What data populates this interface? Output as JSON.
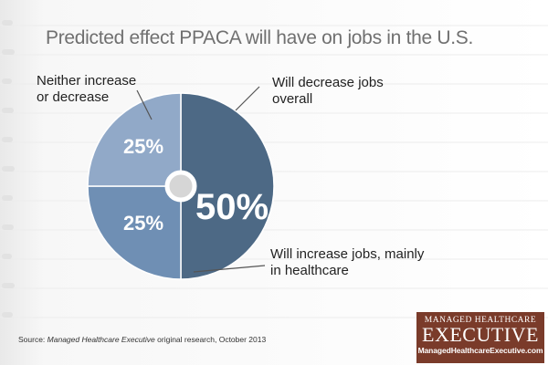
{
  "title": "Predicted effect PPACA will have on jobs in the U.S.",
  "callouts": {
    "neither": "Neither increase or decrease",
    "decrease": "Will decrease jobs overall",
    "increase": "Will increase jobs, mainly in healthcare"
  },
  "source": {
    "prefix": "Source: ",
    "publication": "Managed Healthcare Executive",
    "suffix": " original research, October 2013"
  },
  "logo": {
    "top": "MANAGED HEALTHCARE",
    "main": "EXECUTIVE",
    "url": "ManagedHealthcareExecutive.com"
  },
  "chart_data": {
    "type": "pie",
    "title": "Predicted effect PPACA will have on jobs in the U.S.",
    "slices": [
      {
        "label": "Will decrease jobs overall",
        "value": 50,
        "display": "50%",
        "color": "#4d6985"
      },
      {
        "label": "Will increase jobs, mainly in healthcare",
        "value": 25,
        "display": "25%",
        "color": "#6f8fb4"
      },
      {
        "label": "Neither increase or decrease",
        "value": 25,
        "display": "25%",
        "color": "#91a9c8"
      }
    ],
    "center_color": "#d6d6d6"
  }
}
